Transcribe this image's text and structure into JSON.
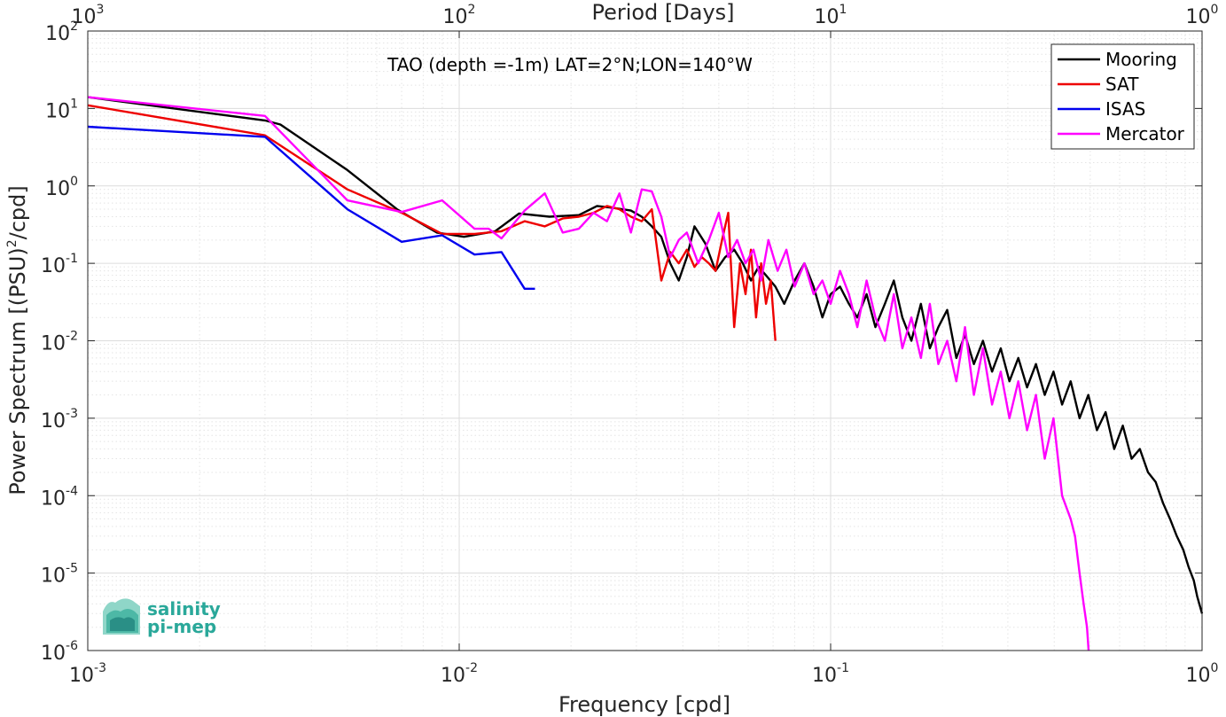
{
  "chart_data": {
    "type": "line",
    "annotation": "TAO (depth =-1m) LAT=2°N;LON=140°W",
    "xlabel": "Frequency [cpd]",
    "ylabel": "Power Spectrum [(PSU)^2/cpd]",
    "ylabel_parts": {
      "main": "Power Spectrum [(PSU)",
      "sup": "2",
      "tail": "/cpd]"
    },
    "top_xlabel": "Period [Days]",
    "x_scale": "log",
    "y_scale": "log",
    "xlim": [
      0.001,
      1
    ],
    "ylim": [
      1e-06,
      100
    ],
    "x_ticks": [
      {
        "value": 0.001,
        "base": "10",
        "exp": "-3"
      },
      {
        "value": 0.01,
        "base": "10",
        "exp": "-2"
      },
      {
        "value": 0.1,
        "base": "10",
        "exp": "-1"
      },
      {
        "value": 1,
        "base": "10",
        "exp": "0"
      }
    ],
    "y_ticks": [
      {
        "value": 1e-06,
        "base": "10",
        "exp": "-6"
      },
      {
        "value": 1e-05,
        "base": "10",
        "exp": "-5"
      },
      {
        "value": 0.0001,
        "base": "10",
        "exp": "-4"
      },
      {
        "value": 0.001,
        "base": "10",
        "exp": "-3"
      },
      {
        "value": 0.01,
        "base": "10",
        "exp": "-2"
      },
      {
        "value": 0.1,
        "base": "10",
        "exp": "-1"
      },
      {
        "value": 1,
        "base": "10",
        "exp": "0"
      },
      {
        "value": 10,
        "base": "10",
        "exp": "1"
      },
      {
        "value": 100,
        "base": "10",
        "exp": "2"
      }
    ],
    "top_ticks": [
      {
        "value": 0.001,
        "base": "10",
        "exp": "3"
      },
      {
        "value": 0.01,
        "base": "10",
        "exp": "2"
      },
      {
        "value": 0.1,
        "base": "10",
        "exp": "1"
      },
      {
        "value": 1,
        "base": "10",
        "exp": "0"
      }
    ],
    "grid": true,
    "minor_grid": true,
    "legend_position": "top-right",
    "series": [
      {
        "name": "Mooring",
        "color": "#000000",
        "x": [
          0.001,
          0.003,
          0.0033,
          0.005,
          0.0068,
          0.0087,
          0.0103,
          0.0125,
          0.0145,
          0.0175,
          0.021,
          0.0235,
          0.026,
          0.029,
          0.031,
          0.033,
          0.035,
          0.037,
          0.039,
          0.041,
          0.043,
          0.046,
          0.049,
          0.052,
          0.055,
          0.058,
          0.061,
          0.064,
          0.067,
          0.071,
          0.075,
          0.08,
          0.085,
          0.09,
          0.095,
          0.1,
          0.106,
          0.112,
          0.118,
          0.125,
          0.132,
          0.14,
          0.148,
          0.156,
          0.165,
          0.175,
          0.185,
          0.195,
          0.206,
          0.218,
          0.23,
          0.243,
          0.257,
          0.272,
          0.287,
          0.303,
          0.32,
          0.338,
          0.357,
          0.377,
          0.398,
          0.42,
          0.443,
          0.468,
          0.494,
          0.521,
          0.55,
          0.58,
          0.612,
          0.646,
          0.68,
          0.715,
          0.75,
          0.785,
          0.82,
          0.855,
          0.89,
          0.92,
          0.95,
          0.97,
          1.0
        ],
        "y": [
          14,
          7,
          6.2,
          1.6,
          0.5,
          0.25,
          0.22,
          0.26,
          0.44,
          0.4,
          0.42,
          0.55,
          0.52,
          0.48,
          0.4,
          0.3,
          0.22,
          0.1,
          0.06,
          0.12,
          0.3,
          0.18,
          0.08,
          0.12,
          0.15,
          0.1,
          0.06,
          0.09,
          0.07,
          0.05,
          0.03,
          0.06,
          0.1,
          0.05,
          0.02,
          0.04,
          0.05,
          0.03,
          0.02,
          0.04,
          0.015,
          0.03,
          0.06,
          0.02,
          0.01,
          0.03,
          0.008,
          0.015,
          0.025,
          0.006,
          0.012,
          0.005,
          0.01,
          0.004,
          0.008,
          0.003,
          0.006,
          0.0025,
          0.005,
          0.002,
          0.004,
          0.0015,
          0.003,
          0.001,
          0.002,
          0.0007,
          0.0012,
          0.0004,
          0.0008,
          0.0003,
          0.0004,
          0.0002,
          0.00015,
          8e-05,
          5e-05,
          3e-05,
          2e-05,
          1.2e-05,
          8e-06,
          5e-06,
          3e-06
        ]
      },
      {
        "name": "SAT",
        "color": "#ee0000",
        "x": [
          0.001,
          0.003,
          0.005,
          0.007,
          0.009,
          0.011,
          0.013,
          0.015,
          0.017,
          0.019,
          0.021,
          0.023,
          0.025,
          0.027,
          0.029,
          0.031,
          0.033,
          0.035,
          0.037,
          0.039,
          0.041,
          0.043,
          0.045,
          0.047,
          0.049,
          0.051,
          0.053,
          0.055,
          0.057,
          0.059,
          0.061,
          0.063,
          0.065,
          0.067,
          0.069,
          0.071
        ],
        "y": [
          11,
          4.5,
          0.9,
          0.45,
          0.24,
          0.24,
          0.26,
          0.35,
          0.3,
          0.38,
          0.4,
          0.45,
          0.55,
          0.5,
          0.4,
          0.35,
          0.5,
          0.06,
          0.14,
          0.1,
          0.15,
          0.09,
          0.12,
          0.1,
          0.08,
          0.2,
          0.45,
          0.015,
          0.1,
          0.04,
          0.15,
          0.02,
          0.1,
          0.03,
          0.06,
          0.01
        ]
      },
      {
        "name": "ISAS",
        "color": "#0000ee",
        "x": [
          0.001,
          0.003,
          0.005,
          0.007,
          0.009,
          0.011,
          0.013,
          0.015,
          0.016
        ],
        "y": [
          5.8,
          4.3,
          0.5,
          0.19,
          0.23,
          0.13,
          0.14,
          0.047,
          0.047
        ]
      },
      {
        "name": "Mercator",
        "color": "#ff00ff",
        "x": [
          0.001,
          0.003,
          0.005,
          0.007,
          0.009,
          0.011,
          0.012,
          0.013,
          0.015,
          0.017,
          0.019,
          0.021,
          0.023,
          0.025,
          0.027,
          0.029,
          0.031,
          0.033,
          0.035,
          0.037,
          0.039,
          0.041,
          0.044,
          0.047,
          0.05,
          0.053,
          0.056,
          0.059,
          0.062,
          0.065,
          0.068,
          0.072,
          0.076,
          0.08,
          0.085,
          0.09,
          0.095,
          0.1,
          0.106,
          0.112,
          0.118,
          0.125,
          0.132,
          0.14,
          0.148,
          0.156,
          0.165,
          0.175,
          0.185,
          0.195,
          0.206,
          0.218,
          0.23,
          0.243,
          0.257,
          0.272,
          0.287,
          0.303,
          0.32,
          0.338,
          0.357,
          0.377,
          0.398,
          0.42,
          0.443,
          0.455,
          0.468,
          0.48,
          0.49,
          0.495
        ],
        "y": [
          14,
          8,
          0.65,
          0.46,
          0.65,
          0.28,
          0.28,
          0.21,
          0.48,
          0.8,
          0.25,
          0.28,
          0.45,
          0.35,
          0.8,
          0.25,
          0.9,
          0.85,
          0.4,
          0.12,
          0.2,
          0.25,
          0.1,
          0.2,
          0.45,
          0.12,
          0.2,
          0.1,
          0.15,
          0.06,
          0.2,
          0.08,
          0.15,
          0.05,
          0.1,
          0.04,
          0.06,
          0.03,
          0.08,
          0.04,
          0.015,
          0.06,
          0.02,
          0.01,
          0.04,
          0.008,
          0.02,
          0.006,
          0.03,
          0.005,
          0.01,
          0.003,
          0.015,
          0.002,
          0.008,
          0.0015,
          0.004,
          0.001,
          0.003,
          0.0007,
          0.002,
          0.0003,
          0.001,
          0.0001,
          5e-05,
          3e-05,
          1e-05,
          4e-06,
          2e-06,
          1e-06
        ]
      }
    ]
  },
  "logo": {
    "line1": "salinity",
    "line2": "pi-mep"
  }
}
